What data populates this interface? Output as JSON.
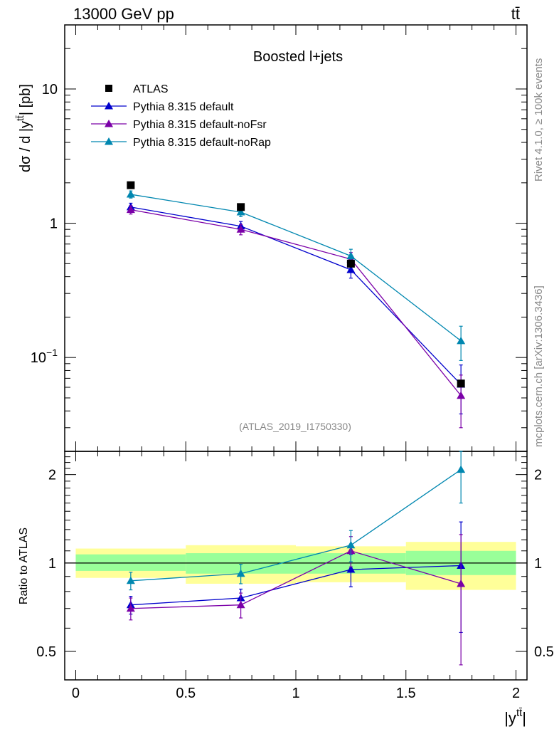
{
  "header": {
    "left": "13000 GeV pp",
    "right": "tt̄"
  },
  "side_texts": {
    "rivet": "Rivet 4.1.0, ≥ 100k events",
    "mcplots": "mcplots.cern.ch [arXiv:1306.3436]"
  },
  "analysis_label": "(ATLAS_2019_I1750330)",
  "colors": {
    "atlas": "#000000",
    "default": "#0000cc",
    "noFsr": "#7b00a8",
    "noRap": "#0087b0",
    "band_inner": "#99ff99",
    "band_outer": "#ffff99"
  },
  "chart_data": [
    {
      "type": "line",
      "title": "Boosted l+jets",
      "xlabel": "|y^{tt̄}|",
      "ylabel": "dσ / d |y^{tt̄}| [pb]",
      "yscale": "log",
      "xlim": [
        -0.05,
        2.05
      ],
      "ylim": [
        0.02,
        30
      ],
      "x": [
        0.25,
        0.75,
        1.25,
        1.75
      ],
      "y_ticks": [
        {
          "value": 0.1,
          "base": "10",
          "exp": "−1"
        },
        {
          "value": 1,
          "label": "1"
        },
        {
          "value": 10,
          "label": "10"
        }
      ],
      "legend": {
        "position": "top-left",
        "entries": [
          "ATLAS",
          "Pythia 8.315 default",
          "Pythia 8.315 default-noFsr",
          "Pythia 8.315 default-noRap"
        ]
      },
      "data": {
        "name": "ATLAS",
        "values": [
          1.92,
          1.32,
          0.5,
          0.064
        ],
        "xerr": 0.25
      },
      "series": [
        {
          "name": "Pythia 8.315 default",
          "color_key": "default",
          "values": [
            1.32,
            0.95,
            0.45,
            0.063
          ],
          "err": [
            0.09,
            0.08,
            0.06,
            0.025
          ]
        },
        {
          "name": "Pythia 8.315 default-noFsr",
          "color_key": "noFsr",
          "values": [
            1.26,
            0.9,
            0.54,
            0.052
          ],
          "err": [
            0.09,
            0.08,
            0.065,
            0.022
          ]
        },
        {
          "name": "Pythia 8.315 default-noRap",
          "color_key": "noRap",
          "values": [
            1.64,
            1.21,
            0.57,
            0.133
          ],
          "err": [
            0.1,
            0.09,
            0.07,
            0.038
          ]
        }
      ]
    },
    {
      "type": "line",
      "ylabel": "Ratio to ATLAS",
      "xlabel": "|y^{tt̄}|",
      "xlim": [
        -0.05,
        2.05
      ],
      "ylim": [
        0.4,
        2.4
      ],
      "x_ticks": [
        0,
        0.5,
        1,
        1.5,
        2
      ],
      "x_tick_labels": [
        "0",
        "0.5",
        "1",
        "1.5",
        "2"
      ],
      "y_ticks": [
        0.5,
        1,
        2
      ],
      "y_tick_labels": [
        "0.5",
        "1",
        "2"
      ],
      "bands": [
        {
          "x0": 0,
          "x1": 0.5,
          "inner": [
            0.94,
            1.07
          ],
          "outer": [
            0.89,
            1.12
          ]
        },
        {
          "x0": 0.5,
          "x1": 1,
          "inner": [
            0.92,
            1.08
          ],
          "outer": [
            0.85,
            1.15
          ]
        },
        {
          "x0": 1,
          "x1": 1.5,
          "inner": [
            0.92,
            1.08
          ],
          "outer": [
            0.86,
            1.14
          ]
        },
        {
          "x0": 1.5,
          "x1": 2,
          "inner": [
            0.91,
            1.1
          ],
          "outer": [
            0.81,
            1.18
          ]
        }
      ],
      "series": [
        {
          "name": "Pythia 8.315 default",
          "color_key": "default",
          "values": [
            0.72,
            0.76,
            0.95,
            0.98
          ],
          "err": [
            0.05,
            0.055,
            0.12,
            0.4
          ]
        },
        {
          "name": "Pythia 8.315 default-noFsr",
          "color_key": "noFsr",
          "values": [
            0.7,
            0.72,
            1.1,
            0.85
          ],
          "err": [
            0.06,
            0.07,
            0.13,
            0.4
          ]
        },
        {
          "name": "Pythia 8.315 default-noRap",
          "color_key": "noRap",
          "values": [
            0.87,
            0.92,
            1.15,
            2.08
          ],
          "err": [
            0.06,
            0.07,
            0.14,
            0.48
          ]
        }
      ]
    }
  ]
}
